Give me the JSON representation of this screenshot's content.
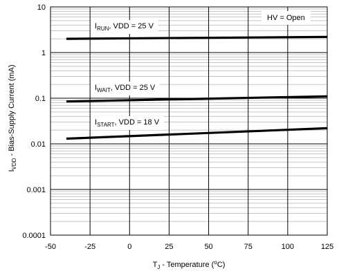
{
  "chart_data": {
    "type": "line",
    "scale_y": "log",
    "grid": true,
    "xlim": [
      -50,
      125
    ],
    "ylim": [
      0.0001,
      10
    ],
    "x_ticks": [
      "-50",
      "-25",
      "0",
      "25",
      "50",
      "75",
      "100",
      "125"
    ],
    "y_ticks": [
      "0.0001",
      "0.001",
      "0.01",
      "0.1",
      "1",
      "10"
    ],
    "xlabel": {
      "base": "T",
      "sub": "J",
      "rest": " - Temperature  (",
      "deg": "o",
      "unit": "C)"
    },
    "ylabel": {
      "base": "I",
      "sub": "VDD",
      "rest": " - Bias-Supply Current  (mA)"
    },
    "legend": {
      "text": "HV = Open",
      "position": "top-right"
    },
    "series": [
      {
        "name_base": "I",
        "name_sub": "RUN",
        "name_rest": ",  VDD = 25 V",
        "x": [
          -40,
          125
        ],
        "y": [
          2.0,
          2.2
        ]
      },
      {
        "name_base": "I",
        "name_sub": "WAIT",
        "name_rest": ",  VDD = 25 V",
        "x": [
          -40,
          125
        ],
        "y": [
          0.085,
          0.11
        ]
      },
      {
        "name_base": "I",
        "name_sub": "START",
        "name_rest": ",  VDD = 18 V",
        "x": [
          -40,
          125
        ],
        "y": [
          0.013,
          0.022
        ]
      }
    ]
  }
}
